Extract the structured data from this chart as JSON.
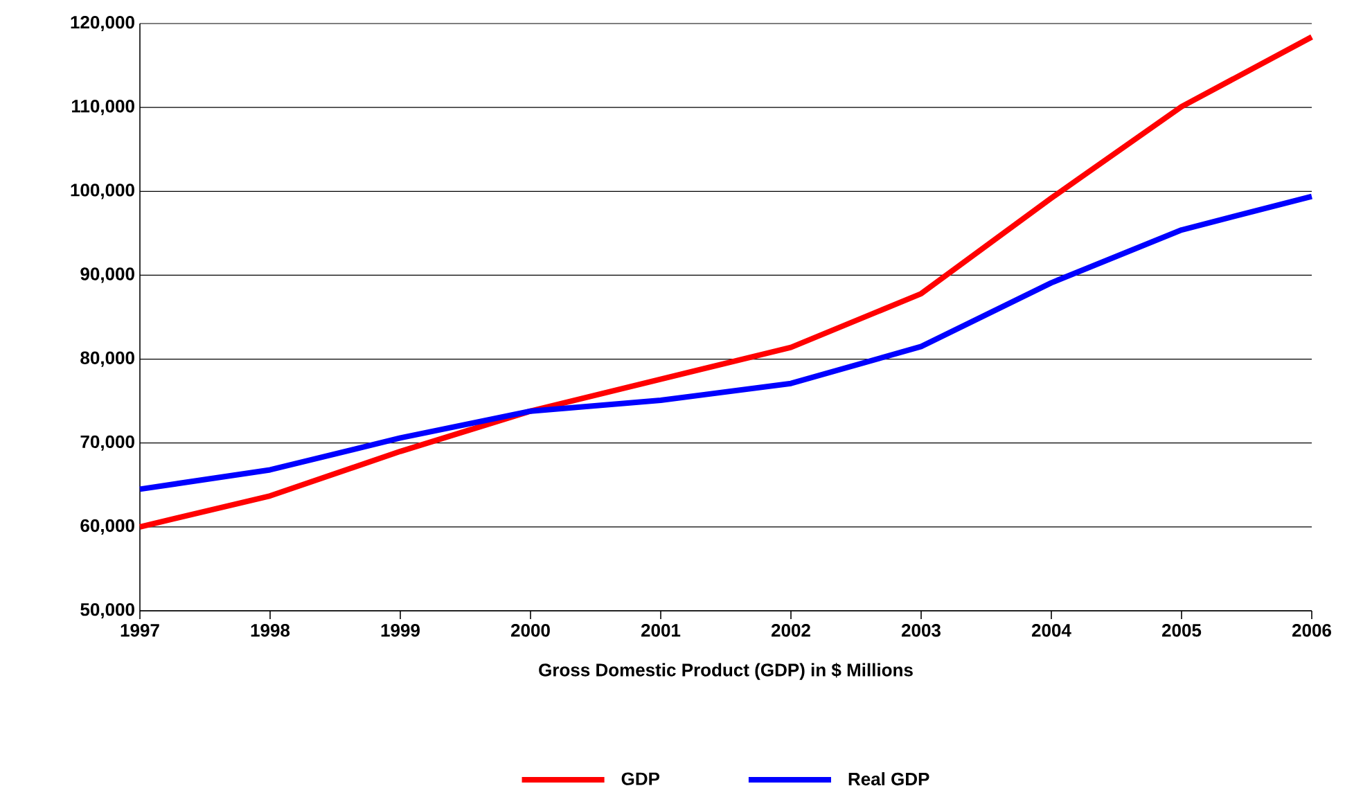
{
  "chart_data": {
    "type": "line",
    "xlabel": "Gross Domestic Product (GDP) in $ Millions",
    "x": [
      1997,
      1998,
      1999,
      2000,
      2001,
      2002,
      2003,
      2004,
      2005,
      2006
    ],
    "series": [
      {
        "name": "GDP",
        "color": "#ff0000",
        "values": [
          60000,
          63700,
          69000,
          73800,
          77600,
          81400,
          87800,
          99200,
          110100,
          118400
        ]
      },
      {
        "name": "Real GDP",
        "color": "#0000ff",
        "values": [
          64500,
          66800,
          70600,
          73800,
          75100,
          77100,
          81500,
          89100,
          95400,
          99400
        ]
      }
    ],
    "xlim": [
      1997,
      2006
    ],
    "xticks": [
      1997,
      1998,
      1999,
      2000,
      2001,
      2002,
      2003,
      2004,
      2005,
      2006
    ],
    "ylim": [
      50000,
      120000
    ],
    "yticks": [
      {
        "value": 50000,
        "label": "50,000"
      },
      {
        "value": 60000,
        "label": "60,000"
      },
      {
        "value": 70000,
        "label": "70,000"
      },
      {
        "value": 80000,
        "label": "80,000"
      },
      {
        "value": 90000,
        "label": "90,000"
      },
      {
        "value": 100000,
        "label": "100,000"
      },
      {
        "value": 110000,
        "label": "110,000"
      },
      {
        "value": 120000,
        "label": "120,000"
      }
    ],
    "grid": "y",
    "legend": "bottom",
    "marker": "none",
    "line_style": "solid"
  }
}
